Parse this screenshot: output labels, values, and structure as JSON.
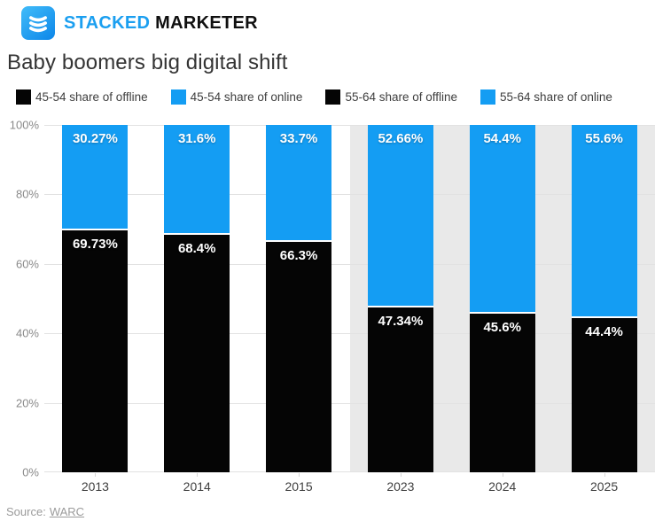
{
  "header": {
    "brand_first": "STACKED",
    "brand_second": " MARKETER"
  },
  "title": "Baby boomers big digital shift",
  "legend": {
    "items": [
      {
        "label": "45-54 share of offline",
        "color": "#050505"
      },
      {
        "label": "45-54 share of online",
        "color": "#149df3"
      },
      {
        "label": "55-64 share of offline",
        "color": "#050505"
      },
      {
        "label": "55-64 share of online",
        "color": "#149df3"
      }
    ]
  },
  "source": {
    "prefix": "Source:",
    "link_text": "WARC"
  },
  "colors": {
    "online": "#149df3",
    "offline": "#050505",
    "highlight_band": "#e9e9e9"
  },
  "chart_data": {
    "type": "bar",
    "stacked": true,
    "title": "Baby boomers big digital shift",
    "categories": [
      "2013",
      "2014",
      "2015",
      "2023",
      "2024",
      "2025"
    ],
    "cohorts": [
      "45-54",
      "45-54",
      "45-54",
      "55-64",
      "55-64",
      "55-64"
    ],
    "series": [
      {
        "name": "share of online",
        "color": "#149df3",
        "values": [
          30.27,
          31.6,
          33.7,
          52.66,
          54.4,
          55.6
        ]
      },
      {
        "name": "share of offline",
        "color": "#050505",
        "values": [
          69.73,
          68.4,
          66.3,
          47.34,
          45.6,
          44.4
        ]
      }
    ],
    "value_suffix": "%",
    "y_ticks": [
      100,
      80,
      60,
      40,
      20,
      0
    ],
    "ylim": [
      0,
      100
    ],
    "grid": true,
    "legend_position": "top",
    "highlighted_categories": [
      "2023",
      "2024",
      "2025"
    ]
  }
}
